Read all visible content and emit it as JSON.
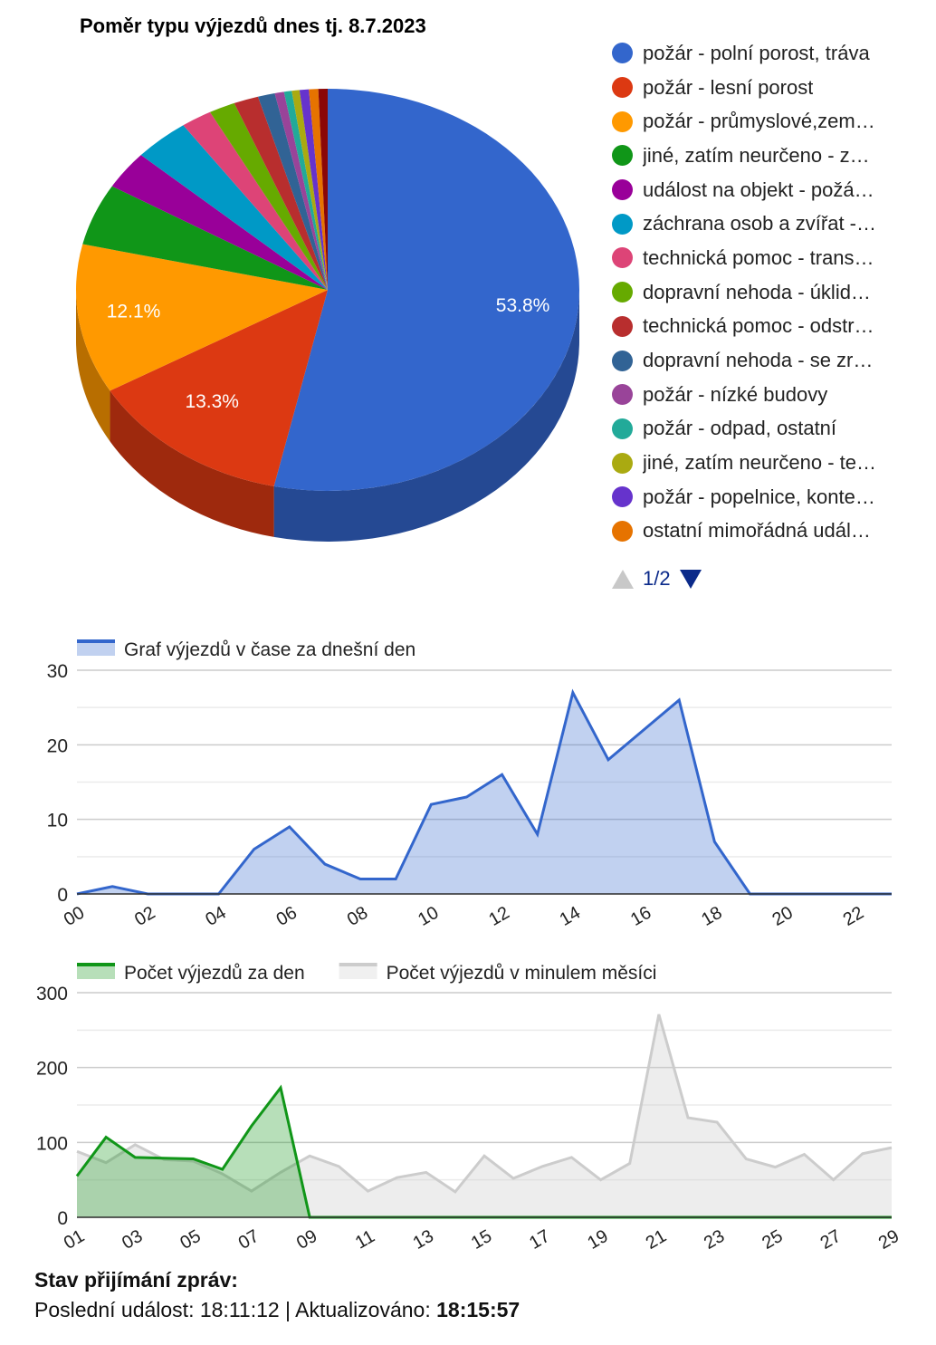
{
  "pie": {
    "title": "Poměr typu výjezdů dnes tj. 8.7.2023",
    "chart_data": {
      "type": "pie",
      "title": "Poměr typu výjezdů dnes tj. 8.7.2023",
      "slices": [
        {
          "label": "požár - polní porost, tráva",
          "value": 53.8,
          "color": "#3366cc",
          "shown_label": "53.8%"
        },
        {
          "label": "požár - lesní porost",
          "value": 13.3,
          "color": "#dc3912",
          "shown_label": "13.3%"
        },
        {
          "label": "požár - průmyslové,zem…",
          "value": 12.1,
          "color": "#ff9900",
          "shown_label": "12.1%"
        },
        {
          "label": "jiné, zatím neurčeno - z…",
          "value": 5.0,
          "color": "#109618"
        },
        {
          "label": "událost na objekt - požá…",
          "value": 3.1,
          "color": "#990099"
        },
        {
          "label": "záchrana osob a zvířat -…",
          "value": 3.6,
          "color": "#0099c6"
        },
        {
          "label": "technická pomoc - trans…",
          "value": 2.0,
          "color": "#dd4477"
        },
        {
          "label": "dopravní nehoda - úklid…",
          "value": 1.7,
          "color": "#66aa00"
        },
        {
          "label": "technická pomoc - odstr…",
          "value": 1.6,
          "color": "#b82e2e"
        },
        {
          "label": "dopravní nehoda - se zr…",
          "value": 1.1,
          "color": "#316395"
        },
        {
          "label": "požár - nízké budovy",
          "value": 0.6,
          "color": "#994499"
        },
        {
          "label": "požár - odpad, ostatní",
          "value": 0.5,
          "color": "#22aa99"
        },
        {
          "label": "jiné, zatím neurčeno - te…",
          "value": 0.5,
          "color": "#aaaa11"
        },
        {
          "label": "požár - popelnice, konte…",
          "value": 0.6,
          "color": "#6633cc"
        },
        {
          "label": "ostatní mimořádná udál…",
          "value": 0.6,
          "color": "#e67300"
        },
        {
          "label": "",
          "value": 0.6,
          "color": "#8b0707"
        }
      ]
    },
    "pager": "1/2"
  },
  "hourly": {
    "legend": "Graf výjezdů v čase za dnešní den",
    "chart_data": {
      "type": "area",
      "x": [
        "00",
        "01",
        "02",
        "03",
        "04",
        "05",
        "06",
        "07",
        "08",
        "09",
        "10",
        "11",
        "12",
        "13",
        "14",
        "15",
        "16",
        "17",
        "18",
        "19",
        "20",
        "21",
        "22",
        "23"
      ],
      "series": [
        {
          "name": "Graf výjezdů v čase za dnešní den",
          "color": "#3366cc",
          "values": [
            0,
            1,
            0,
            0,
            0,
            6,
            9,
            4,
            2,
            2,
            12,
            13,
            16,
            8,
            27,
            18,
            22,
            26,
            7,
            0,
            0,
            0,
            0,
            0
          ]
        }
      ],
      "x_tick_labels": [
        "00",
        "02",
        "04",
        "06",
        "08",
        "10",
        "12",
        "14",
        "16",
        "18",
        "20",
        "22"
      ],
      "y_ticks": [
        "0",
        "10",
        "20",
        "30"
      ],
      "ylim": [
        0,
        30
      ],
      "grid": true
    }
  },
  "daily": {
    "legend_current": "Počet výjezdů za den",
    "legend_previous": "Počet výjezdů v minulem měsíci",
    "chart_data": {
      "type": "area",
      "x": [
        "01",
        "02",
        "03",
        "04",
        "05",
        "06",
        "07",
        "08",
        "09",
        "10",
        "11",
        "12",
        "13",
        "14",
        "15",
        "16",
        "17",
        "18",
        "19",
        "20",
        "21",
        "22",
        "23",
        "24",
        "25",
        "26",
        "27",
        "28",
        "29"
      ],
      "series": [
        {
          "name": "Počet výjezdů za den",
          "color": "#109618",
          "values": [
            55,
            107,
            80,
            79,
            78,
            64,
            122,
            173,
            0,
            0,
            0,
            0,
            0,
            0,
            0,
            0,
            0,
            0,
            0,
            0,
            0,
            0,
            0,
            0,
            0,
            0,
            0,
            0,
            0
          ]
        },
        {
          "name": "Počet výjezdů v minulem měsíci",
          "color": "#cccccc",
          "values": [
            88,
            73,
            97,
            77,
            75,
            58,
            35,
            60,
            82,
            68,
            35,
            53,
            60,
            34,
            82,
            52,
            68,
            80,
            50,
            72,
            271,
            133,
            127,
            78,
            67,
            84,
            50,
            85,
            93
          ]
        }
      ],
      "x_tick_labels": [
        "01",
        "03",
        "05",
        "07",
        "09",
        "11",
        "13",
        "15",
        "17",
        "19",
        "21",
        "23",
        "25",
        "27",
        "29"
      ],
      "y_ticks": [
        "0",
        "100",
        "200",
        "300"
      ],
      "ylim": [
        0,
        300
      ],
      "grid": true
    }
  },
  "status": {
    "title": "Stav přijímání zpráv:",
    "line_prefix": "Poslední událost: 18:11:12 | Aktualizováno: ",
    "updated": "18:15:57"
  }
}
